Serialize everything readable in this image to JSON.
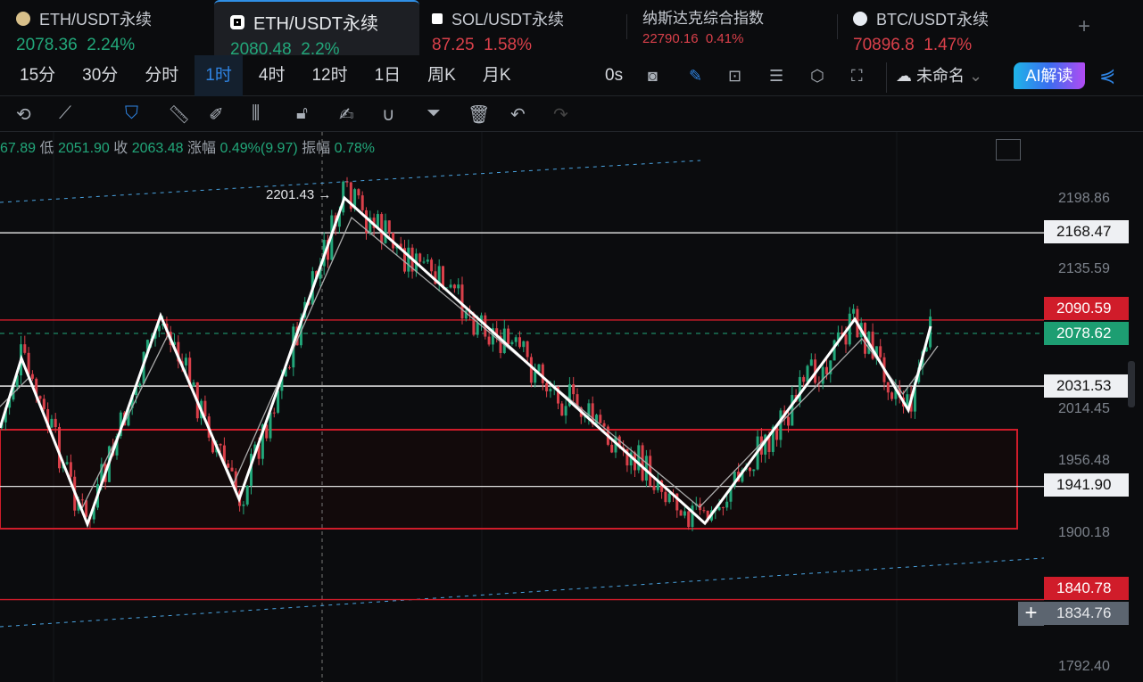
{
  "tabs": [
    {
      "name": "ETH/USDT永续",
      "price": "2078.36",
      "change": "2.24%",
      "dir": "up",
      "icon": "gold-coin-icon"
    },
    {
      "name": "ETH/USDT永续",
      "price": "2080.48",
      "change": "2.2%",
      "dir": "up",
      "icon": "okx-icon",
      "active": true
    },
    {
      "name": "SOL/USDT永续",
      "price": "87.25",
      "change": "1.58%",
      "dir": "down",
      "icon": "okx-icon"
    },
    {
      "name": "纳斯达克综合指数",
      "price": "22790.16",
      "change": "0.41%",
      "dir": "down"
    },
    {
      "name": "BTC/USDT永续",
      "price": "70896.8",
      "change": "1.47%",
      "dir": "down",
      "icon": "flame-icon"
    }
  ],
  "add_tab": "+",
  "intervals": [
    "15分",
    "30分",
    "分时",
    "1时",
    "4时",
    "12时",
    "1日",
    "周K",
    "月K"
  ],
  "selected_interval": "1时",
  "countdown": "0s",
  "layout_name": "未命名",
  "ai_button": "AI解读",
  "ohlc": {
    "high_tail": "67.89",
    "low_label": "低",
    "low": "2051.90",
    "close_label": "收",
    "close": "2063.48",
    "chg_label": "涨幅",
    "chg": "0.49%(9.97)",
    "amp_label": "振幅",
    "amp": "0.78%"
  },
  "axis": {
    "ticks": [
      "2198.86",
      "2135.59",
      "2014.45",
      "1956.48",
      "1900.18",
      "1792.40"
    ],
    "tags": {
      "line1": "2168.47",
      "red1": "2090.59",
      "last": "2078.62",
      "line2": "2031.53",
      "line3": "1941.90",
      "red2": "1840.78",
      "cursor": "1834.76"
    }
  },
  "annotation": "2201.43 →",
  "colors": {
    "up": "#22a77a",
    "down": "#d9404a",
    "accent": "#2f84e3",
    "bg": "#0b0c0e"
  }
}
